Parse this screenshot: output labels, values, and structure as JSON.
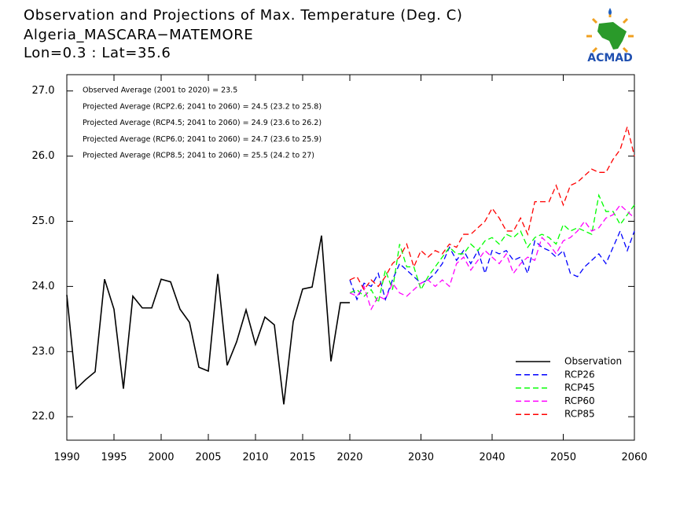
{
  "chart_data": [
    {
      "type": "line",
      "title": "Observation and Projections of Max. Temperature (Deg. C)",
      "subtitle": [
        "Algeria_MASCARA−MATEMORE",
        "Lon=0.3 : Lat=35.6"
      ],
      "logo": "ACMAD",
      "annotations": [
        "Observed Average (2001 to 2020) = 23.5",
        "Projected Average (RCP2.6; 2041 to 2060) = 24.5 (23.2 to 25.8)",
        "Projected Average (RCP4.5; 2041 to 2060) = 24.9 (23.6 to 26.2)",
        "Projected Average (RCP6.0; 2041 to 2060) = 24.7 (23.6 to 25.9)",
        "Projected Average (RCP8.5; 2041 to 2060) = 25.5 (24.2 to 27)"
      ],
      "x": [
        1990,
        1991,
        1992,
        1993,
        1994,
        1995,
        1996,
        1997,
        1998,
        1999,
        2000,
        2001,
        2002,
        2003,
        2004,
        2005,
        2006,
        2007,
        2008,
        2009,
        2010,
        2011,
        2012,
        2013,
        2014,
        2015,
        2016,
        2017,
        2018,
        2019,
        2020
      ],
      "series": [
        {
          "name": "Observation",
          "color": "#000000",
          "dashed": false,
          "values": [
            23.87,
            22.43,
            22.57,
            22.69,
            24.11,
            23.65,
            22.43,
            23.85,
            23.67,
            23.67,
            24.11,
            24.07,
            23.65,
            23.45,
            22.76,
            22.7,
            24.19,
            22.79,
            23.15,
            23.64,
            23.11,
            23.53,
            23.41,
            22.19,
            23.46,
            23.96,
            23.99,
            24.78,
            22.85,
            23.75,
            23.75
          ]
        }
      ],
      "xlim": [
        1990,
        2020
      ],
      "xticks": [
        1990,
        1995,
        2000,
        2005,
        2010,
        2015
      ],
      "ylim": [
        21.64,
        27.25
      ],
      "yticks": [
        {
          "value": 22,
          "label": "22.0"
        },
        {
          "value": 23,
          "label": "23.0"
        },
        {
          "value": 24,
          "label": "24.0"
        },
        {
          "value": 25,
          "label": "25.0"
        },
        {
          "value": 26,
          "label": "26.0"
        },
        {
          "value": 27,
          "label": "27.0"
        }
      ]
    },
    {
      "type": "line",
      "x": [
        2020,
        2021,
        2022,
        2023,
        2024,
        2025,
        2026,
        2027,
        2028,
        2029,
        2030,
        2031,
        2032,
        2033,
        2034,
        2035,
        2036,
        2037,
        2038,
        2039,
        2040,
        2041,
        2042,
        2043,
        2044,
        2045,
        2046,
        2047,
        2048,
        2049,
        2050,
        2051,
        2052,
        2053,
        2054,
        2055,
        2056,
        2057,
        2058,
        2059,
        2060
      ],
      "series": [
        {
          "name": "RCP26",
          "color": "#0000ff",
          "dashed": true,
          "values": [
            24.1,
            23.8,
            24.05,
            24.0,
            24.2,
            23.8,
            24.1,
            24.35,
            24.25,
            24.15,
            24.05,
            24.1,
            24.2,
            24.35,
            24.6,
            24.4,
            24.55,
            24.35,
            24.55,
            24.2,
            24.55,
            24.5,
            24.55,
            24.4,
            24.45,
            24.2,
            24.7,
            24.6,
            24.55,
            24.45,
            24.55,
            24.2,
            24.15,
            24.3,
            24.4,
            24.5,
            24.35,
            24.6,
            24.85,
            24.55,
            24.85
          ]
        },
        {
          "name": "RCP45",
          "color": "#00ff00",
          "dashed": true,
          "values": [
            23.9,
            23.95,
            23.85,
            23.95,
            23.75,
            24.25,
            23.95,
            24.65,
            24.3,
            24.3,
            23.95,
            24.15,
            24.3,
            24.45,
            24.6,
            24.5,
            24.5,
            24.65,
            24.55,
            24.7,
            24.75,
            24.65,
            24.8,
            24.75,
            24.85,
            24.6,
            24.75,
            24.8,
            24.75,
            24.65,
            24.95,
            24.85,
            24.9,
            24.85,
            24.8,
            25.4,
            25.15,
            25.15,
            24.95,
            25.1,
            25.25
          ]
        },
        {
          "name": "RCP60",
          "color": "#ff00ff",
          "dashed": true,
          "values": [
            23.9,
            23.85,
            24.0,
            23.65,
            23.85,
            23.8,
            24.05,
            23.9,
            23.85,
            23.95,
            24.05,
            24.1,
            24.0,
            24.1,
            24.0,
            24.35,
            24.45,
            24.25,
            24.4,
            24.55,
            24.45,
            24.35,
            24.5,
            24.2,
            24.35,
            24.45,
            24.4,
            24.75,
            24.65,
            24.5,
            24.7,
            24.75,
            24.85,
            25.0,
            24.85,
            24.9,
            25.05,
            25.1,
            25.25,
            25.15,
            25.05
          ]
        },
        {
          "name": "RCP85",
          "color": "#ff0000",
          "dashed": true,
          "values": [
            24.1,
            24.15,
            23.95,
            24.1,
            24.0,
            24.15,
            24.35,
            24.45,
            24.65,
            24.3,
            24.55,
            24.45,
            24.55,
            24.5,
            24.65,
            24.6,
            24.8,
            24.8,
            24.9,
            25.0,
            25.2,
            25.05,
            24.85,
            24.85,
            25.05,
            24.8,
            25.3,
            25.3,
            25.3,
            25.55,
            25.25,
            25.55,
            25.6,
            25.7,
            25.8,
            25.75,
            25.75,
            25.95,
            26.1,
            26.45,
            26.0
          ]
        }
      ],
      "xlim": [
        2020,
        2060
      ],
      "xticks": [
        2020,
        2030,
        2040,
        2050,
        2060
      ],
      "ylim": [
        21.64,
        27.25
      ],
      "legend": "lower right"
    }
  ]
}
